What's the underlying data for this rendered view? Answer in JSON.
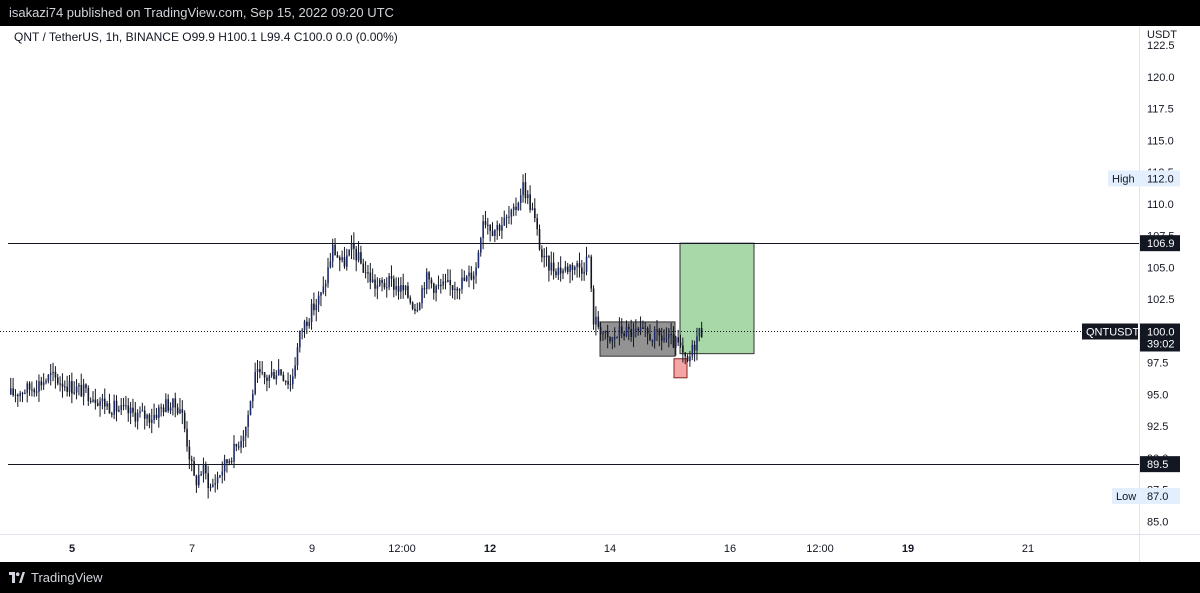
{
  "header": {
    "published": "isakazi74 published on TradingView.com, Sep 15, 2022 09:20 UTC"
  },
  "footer": {
    "brand": "TradingView"
  },
  "chart_data": {
    "type": "candlestick",
    "symbol_line": "QNT / TetherUS, 1h, BINANCE  O99.9  H100.1  L99.4  C100.0  0.0 (0.00%)",
    "currency": "USDT",
    "ylim": [
      84,
      124
    ],
    "y_ticks": [
      "85.0",
      "87.5",
      "90.0",
      "92.5",
      "95.0",
      "97.5",
      "100.0",
      "102.5",
      "105.0",
      "107.5",
      "110.0",
      "112.5",
      "115.0",
      "117.5",
      "120.0",
      "122.5"
    ],
    "x_ticks": [
      {
        "label": "5",
        "bold": true
      },
      {
        "label": "7",
        "bold": false
      },
      {
        "label": "9",
        "bold": false
      },
      {
        "label": "12:00",
        "bold": false
      },
      {
        "label": "12",
        "bold": true
      },
      {
        "label": "14",
        "bold": false
      },
      {
        "label": "16",
        "bold": false
      },
      {
        "label": "12:00",
        "bold": false
      },
      {
        "label": "19",
        "bold": true
      },
      {
        "label": "21",
        "bold": false
      }
    ],
    "horizontal_levels": [
      {
        "price": 106.9,
        "label": "106.9"
      },
      {
        "price": 89.5,
        "label": "89.5"
      }
    ],
    "current_price": {
      "label": "QNTUSDT",
      "price": 100.0,
      "value": "100.0",
      "countdown": "39:02"
    },
    "high": {
      "label": "High",
      "price": 112.0,
      "value": "112.0"
    },
    "low": {
      "label": "Low",
      "price": 87.0,
      "value": "87.0"
    },
    "zones": [
      {
        "name": "consolidation-box",
        "color": "#808080",
        "top": 100.7,
        "bottom": 98.0
      },
      {
        "name": "stop-box",
        "color": "#f4a6a6",
        "top": 97.8,
        "bottom": 96.3
      },
      {
        "name": "target-box",
        "color": "#a8d8a8",
        "top": 106.9,
        "bottom": 98.2
      }
    ],
    "path": [
      [
        0,
        95.0
      ],
      [
        20,
        95.5
      ],
      [
        40,
        96.4
      ],
      [
        60,
        95.6
      ],
      [
        80,
        95.0
      ],
      [
        100,
        94.0
      ],
      [
        120,
        93.5
      ],
      [
        140,
        93.2
      ],
      [
        155,
        94.2
      ],
      [
        170,
        94.0
      ],
      [
        178,
        90.5
      ],
      [
        184,
        88.0
      ],
      [
        192,
        89.2
      ],
      [
        200,
        87.6
      ],
      [
        212,
        89.2
      ],
      [
        225,
        90.8
      ],
      [
        235,
        92.5
      ],
      [
        245,
        96.5
      ],
      [
        255,
        96.2
      ],
      [
        268,
        97.0
      ],
      [
        280,
        95.8
      ],
      [
        290,
        100.0
      ],
      [
        300,
        101.5
      ],
      [
        312,
        103.0
      ],
      [
        322,
        106.5
      ],
      [
        332,
        105.2
      ],
      [
        342,
        106.5
      ],
      [
        352,
        105.0
      ],
      [
        365,
        103.5
      ],
      [
        380,
        103.8
      ],
      [
        395,
        103.0
      ],
      [
        405,
        101.8
      ],
      [
        415,
        104.2
      ],
      [
        425,
        103.4
      ],
      [
        440,
        103.5
      ],
      [
        455,
        104.0
      ],
      [
        465,
        104.8
      ],
      [
        472,
        109.0
      ],
      [
        482,
        108.0
      ],
      [
        492,
        108.5
      ],
      [
        503,
        109.2
      ],
      [
        512,
        111.5
      ],
      [
        522,
        109.4
      ],
      [
        532,
        105.5
      ],
      [
        542,
        105.0
      ],
      [
        552,
        104.8
      ],
      [
        562,
        105.2
      ],
      [
        572,
        105.0
      ],
      [
        578,
        106.0
      ],
      [
        582,
        101.0
      ],
      [
        590,
        100.2
      ],
      [
        598,
        99.0
      ],
      [
        610,
        100.0
      ],
      [
        625,
        99.8
      ],
      [
        640,
        99.6
      ],
      [
        655,
        99.4
      ],
      [
        668,
        98.8
      ],
      [
        676,
        97.2
      ],
      [
        682,
        98.6
      ],
      [
        688,
        99.9
      ],
      [
        692,
        100.0
      ]
    ]
  }
}
